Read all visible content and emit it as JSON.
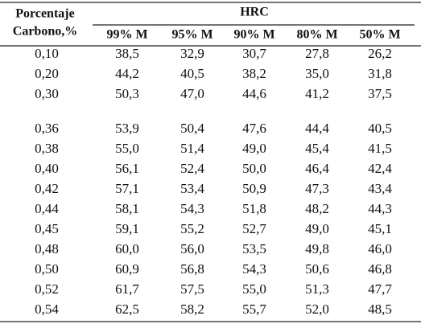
{
  "table": {
    "row_header": [
      "Porcentaje",
      "Carbono,%"
    ],
    "group_header": "HRC",
    "columns": [
      "99% M",
      "95% M",
      "90% M",
      "80% M",
      "50% M"
    ],
    "rows": [
      [
        "0,10",
        "38,5",
        "32,9",
        "30,7",
        "27,8",
        "26,2"
      ],
      [
        "0,20",
        "44,2",
        "40,5",
        "38,2",
        "35,0",
        "31,8"
      ],
      [
        "0,30",
        "50,3",
        "47,0",
        "44,6",
        "41,2",
        "37,5"
      ],
      [
        "0,36",
        "53,9",
        "50,4",
        "47,6",
        "44,4",
        "40,5"
      ],
      [
        "0,38",
        "55,0",
        "51,4",
        "49,0",
        "45,4",
        "41,5"
      ],
      [
        "0,40",
        "56,1",
        "52,4",
        "50,0",
        "46,4",
        "42,4"
      ],
      [
        "0,42",
        "57,1",
        "53,4",
        "50,9",
        "47,3",
        "43,4"
      ],
      [
        "0,44",
        "58,1",
        "54,3",
        "51,8",
        "48,2",
        "44,3"
      ],
      [
        "0,45",
        "59,1",
        "55,2",
        "52,7",
        "49,0",
        "45,1"
      ],
      [
        "0,48",
        "60,0",
        "56,0",
        "53,5",
        "49,8",
        "46,0"
      ],
      [
        "0,50",
        "60,9",
        "56,8",
        "54,3",
        "50,6",
        "46,8"
      ],
      [
        "0,52",
        "61,7",
        "57,5",
        "55,0",
        "51,3",
        "47,7"
      ],
      [
        "0,54",
        "62,5",
        "58,2",
        "55,7",
        "52,0",
        "48,5"
      ]
    ]
  }
}
